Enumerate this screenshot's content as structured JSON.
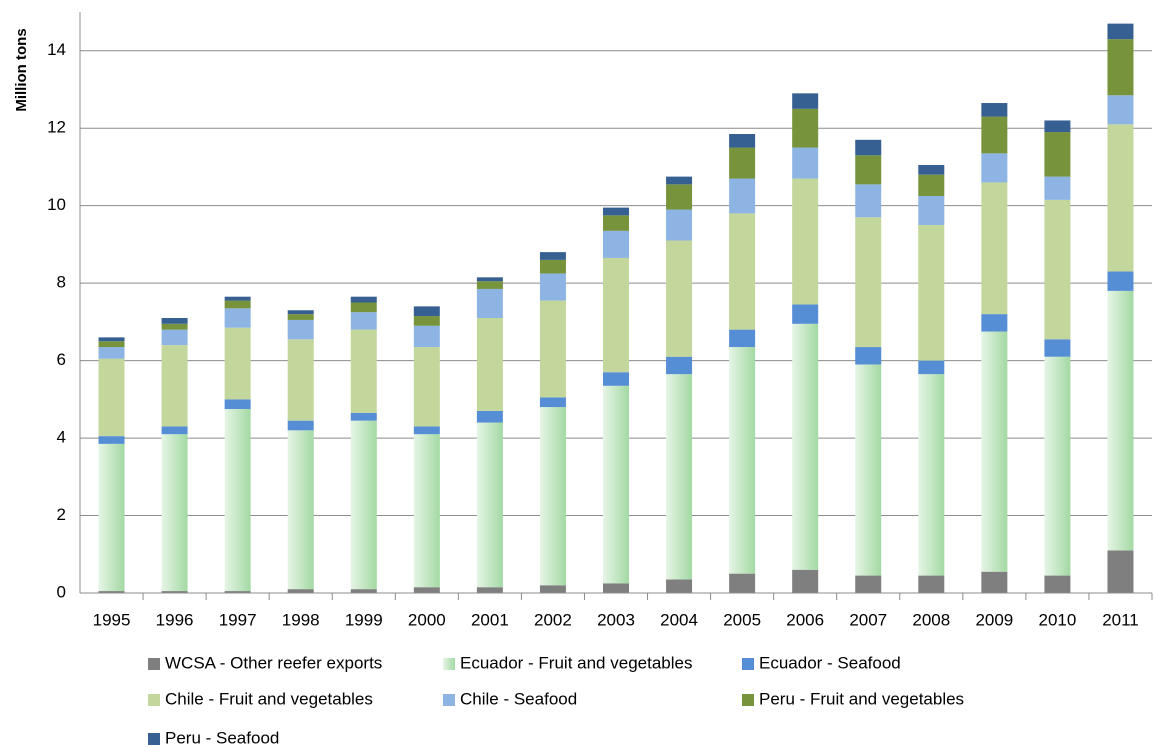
{
  "chart_data": {
    "type": "stacked_bar",
    "y_label": "Million tons",
    "categories": [
      "1995",
      "1996",
      "1997",
      "1998",
      "1999",
      "2000",
      "2001",
      "2002",
      "2003",
      "2004",
      "2005",
      "2006",
      "2007",
      "2008",
      "2009",
      "2010",
      "2011"
    ],
    "series": [
      {
        "name": "WCSA - Other reefer exports",
        "color": "#7f7f7f",
        "values": [
          0.05,
          0.05,
          0.05,
          0.1,
          0.1,
          0.15,
          0.15,
          0.2,
          0.25,
          0.35,
          0.5,
          0.6,
          0.45,
          0.45,
          0.55,
          0.45,
          1.1
        ]
      },
      {
        "name": "Ecuador -  Fruit and vegetables",
        "color": "#b5e0b5",
        "values": [
          3.8,
          4.05,
          4.7,
          4.1,
          4.35,
          3.95,
          4.25,
          4.6,
          5.1,
          5.3,
          5.85,
          6.35,
          5.45,
          5.2,
          6.2,
          5.65,
          6.7
        ]
      },
      {
        "name": "Ecuador - Seafood",
        "color": "#558ed5",
        "values": [
          0.2,
          0.2,
          0.25,
          0.25,
          0.2,
          0.2,
          0.3,
          0.25,
          0.35,
          0.45,
          0.45,
          0.5,
          0.45,
          0.35,
          0.45,
          0.45,
          0.5
        ]
      },
      {
        "name": "Chile -  Fruit and vegetables",
        "color": "#c3d69b",
        "values": [
          2.0,
          2.1,
          1.85,
          2.1,
          2.15,
          2.05,
          2.4,
          2.5,
          2.95,
          3.0,
          3.0,
          3.25,
          3.35,
          3.5,
          3.4,
          3.6,
          3.8
        ]
      },
      {
        "name": "Chile - Seafood",
        "color": "#8eb4e3",
        "values": [
          0.3,
          0.4,
          0.5,
          0.5,
          0.45,
          0.55,
          0.75,
          0.7,
          0.7,
          0.8,
          0.9,
          0.8,
          0.85,
          0.75,
          0.75,
          0.6,
          0.75
        ]
      },
      {
        "name": "Peru -  Fruit and vegetables",
        "color": "#77933c",
        "values": [
          0.15,
          0.15,
          0.2,
          0.15,
          0.25,
          0.25,
          0.2,
          0.35,
          0.4,
          0.65,
          0.8,
          1.0,
          0.75,
          0.55,
          0.95,
          1.15,
          1.45
        ]
      },
      {
        "name": "Peru - Seafood",
        "color": "#376092",
        "values": [
          0.1,
          0.15,
          0.1,
          0.1,
          0.15,
          0.25,
          0.1,
          0.2,
          0.2,
          0.2,
          0.35,
          0.4,
          0.4,
          0.25,
          0.35,
          0.3,
          0.4
        ]
      }
    ],
    "ylim": [
      0,
      15
    ],
    "yticks": [
      0,
      2,
      4,
      6,
      8,
      10,
      12,
      14
    ],
    "grid": true
  }
}
